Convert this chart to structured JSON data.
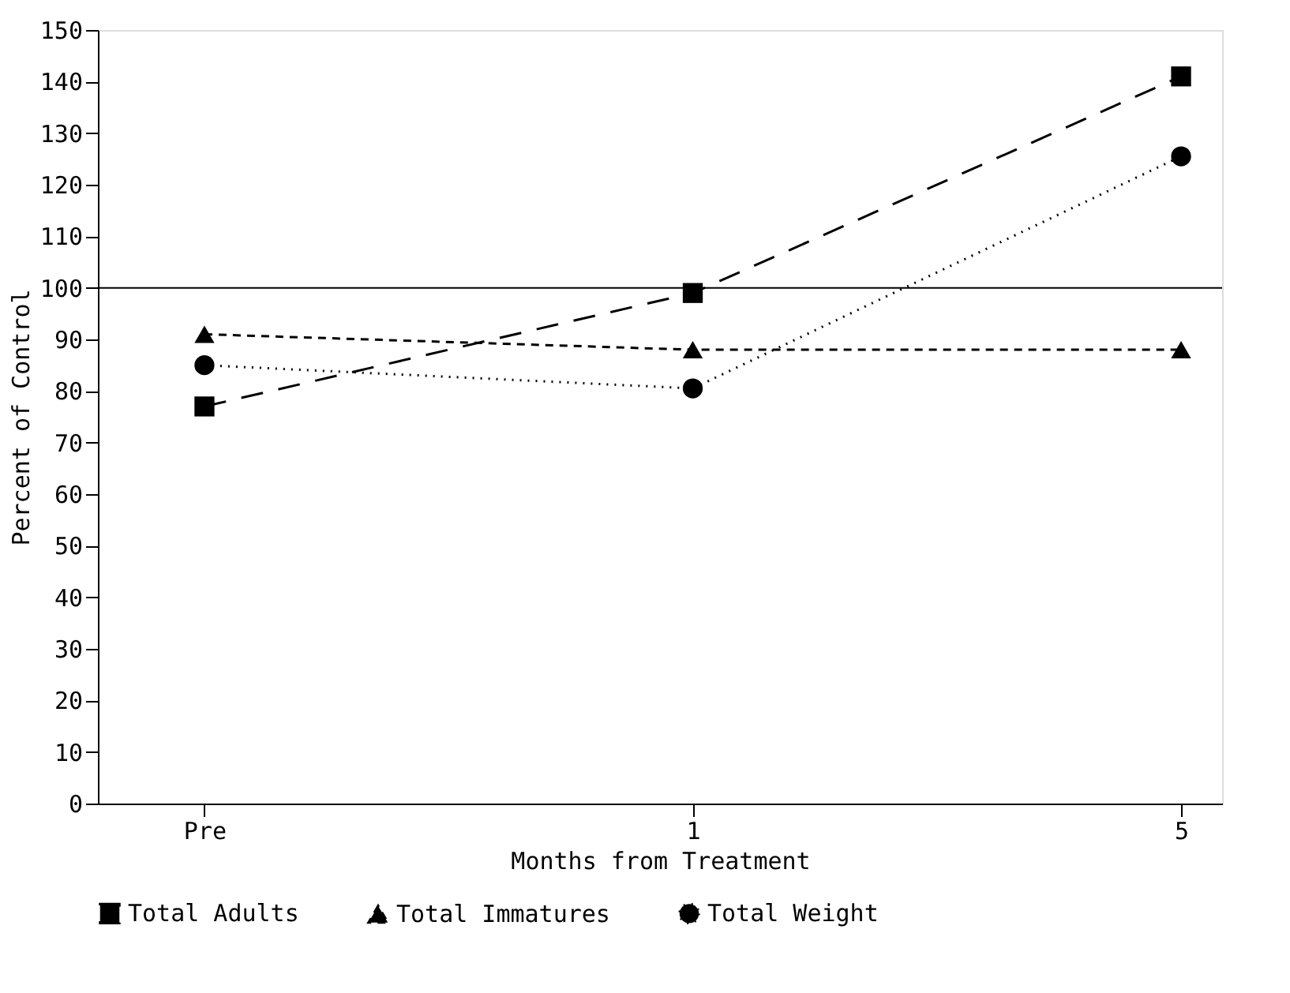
{
  "chart_data": {
    "type": "line",
    "xlabel": "Months from Treatment",
    "ylabel": "Percent of Control",
    "categories": [
      "Pre",
      "1",
      "5"
    ],
    "series": [
      {
        "name": "Total Adults",
        "color": "#000000",
        "values": [
          77,
          99,
          141
        ],
        "marker": "square",
        "line_style": "dashed"
      },
      {
        "name": "Total Immatures",
        "color": "#000000",
        "values": [
          91,
          88,
          88
        ],
        "marker": "triangle",
        "line_style": "dashed"
      },
      {
        "name": "Total Weight",
        "color": "#000000",
        "values": [
          85,
          80.5,
          125.5
        ],
        "marker": "circle",
        "line_style": "dotted"
      }
    ],
    "ylim": [
      0,
      150
    ],
    "yticks": [
      0,
      10,
      20,
      30,
      40,
      50,
      60,
      70,
      80,
      90,
      100,
      110,
      120,
      130,
      140,
      150
    ],
    "ref_lines": [
      {
        "axis": "y",
        "value": 100,
        "label": null
      }
    ],
    "grid": false,
    "legend": "bottom"
  }
}
